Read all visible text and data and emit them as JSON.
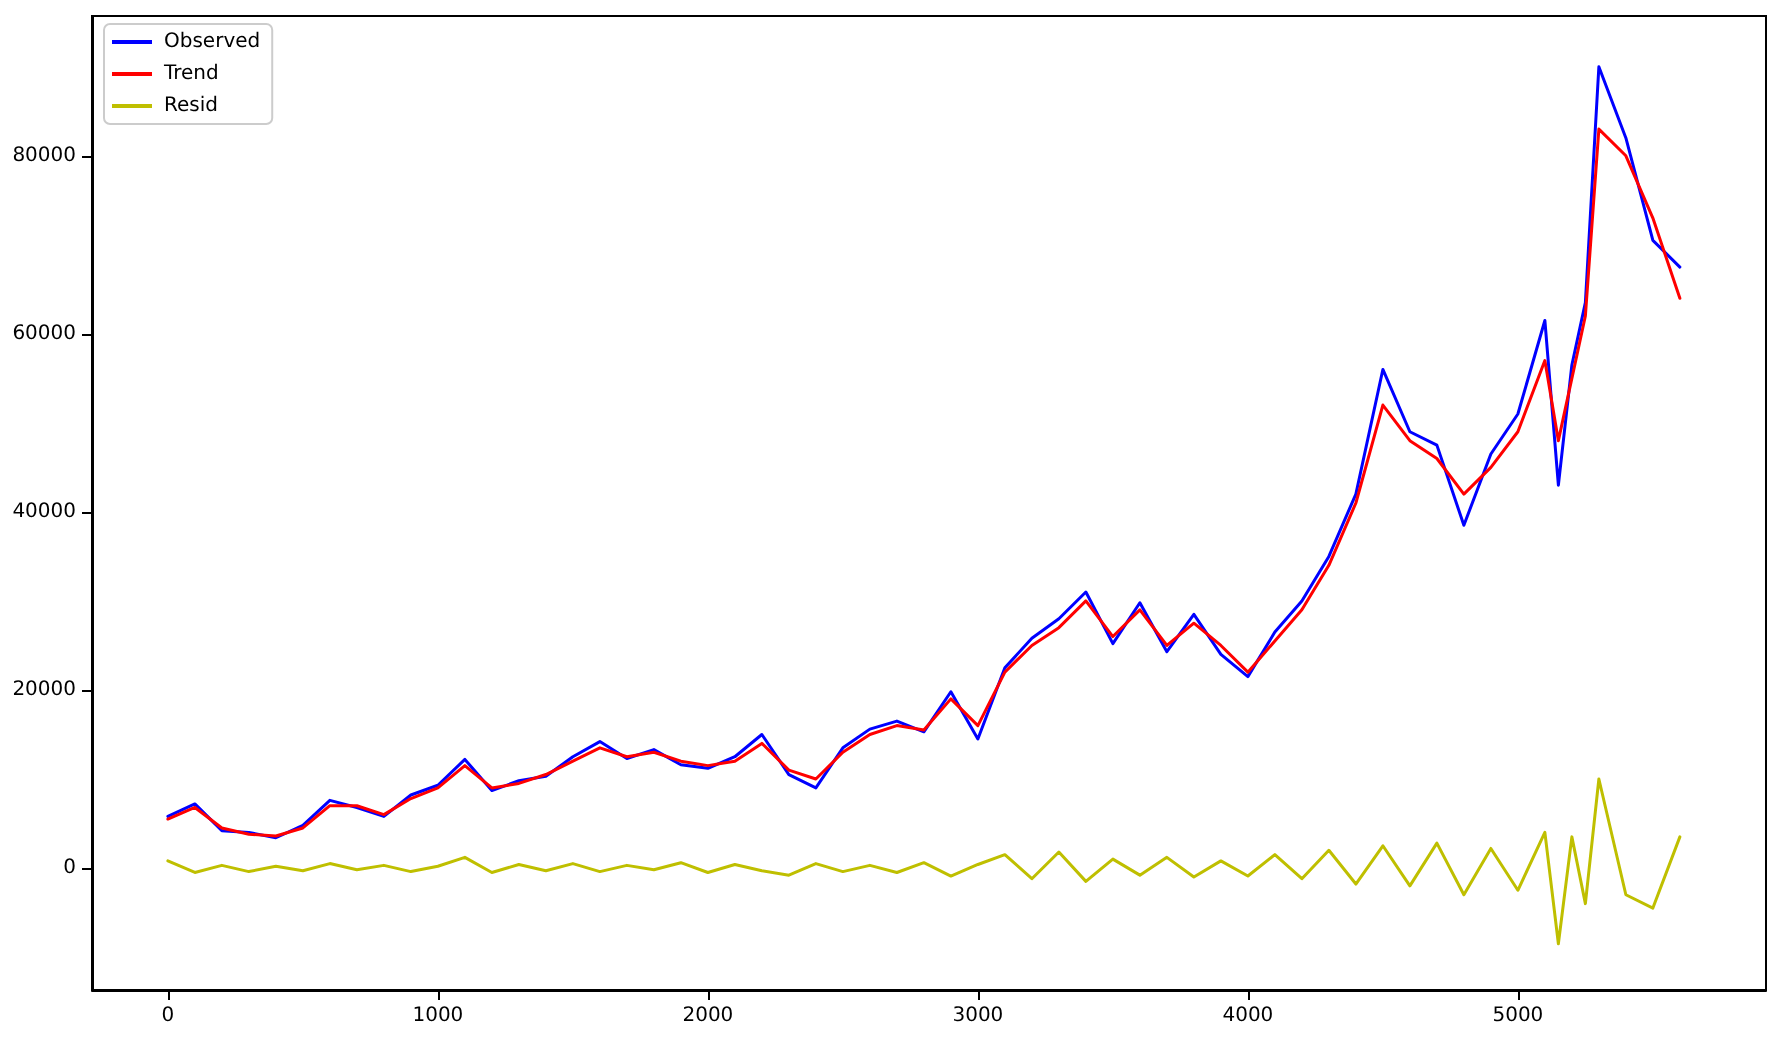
{
  "chart_data": {
    "type": "line",
    "x": [
      0,
      100,
      200,
      300,
      400,
      500,
      600,
      700,
      800,
      900,
      1000,
      1100,
      1200,
      1300,
      1400,
      1500,
      1600,
      1700,
      1800,
      1900,
      2000,
      2100,
      2200,
      2300,
      2400,
      2500,
      2600,
      2700,
      2800,
      2900,
      3000,
      3100,
      3200,
      3300,
      3400,
      3500,
      3600,
      3700,
      3800,
      3900,
      4000,
      4100,
      4200,
      4300,
      4400,
      4500,
      4600,
      4700,
      4800,
      4900,
      5000,
      5100,
      5150,
      5200,
      5250,
      5300,
      5400,
      5500,
      5600
    ],
    "series": [
      {
        "name": "Observed",
        "color": "#0000ff",
        "values": [
          5800,
          7200,
          4200,
          4000,
          3400,
          4800,
          7600,
          6800,
          5800,
          8200,
          9300,
          12200,
          8700,
          9800,
          10300,
          12500,
          14200,
          12300,
          13300,
          11600,
          11200,
          12500,
          15000,
          10500,
          9000,
          13500,
          15600,
          16500,
          15300,
          19800,
          14500,
          22500,
          25800,
          28000,
          31000,
          25200,
          29800,
          24300,
          28500,
          24000,
          21500,
          26500,
          30000,
          35000,
          42000,
          56000,
          49000,
          47500,
          38500,
          46500,
          51000,
          61500,
          43000,
          56500,
          63500,
          90000,
          82000,
          70500,
          67500
        ]
      },
      {
        "name": "Trend",
        "color": "#ff0000",
        "values": [
          5500,
          6800,
          4500,
          3800,
          3600,
          4500,
          7000,
          7000,
          6000,
          7800,
          9000,
          11500,
          9000,
          9500,
          10500,
          12000,
          13500,
          12500,
          13000,
          12000,
          11500,
          12000,
          14000,
          11000,
          10000,
          13000,
          15000,
          16000,
          15500,
          19000,
          16000,
          22000,
          25000,
          27000,
          30000,
          26000,
          29000,
          25000,
          27500,
          25000,
          22000,
          25500,
          29000,
          34000,
          41000,
          52000,
          48000,
          46000,
          42000,
          45000,
          49000,
          57000,
          48000,
          55000,
          62000,
          83000,
          80000,
          73000,
          64000
        ]
      },
      {
        "name": "Resid",
        "color": "#bfbf00",
        "values": [
          800,
          -500,
          300,
          -400,
          200,
          -300,
          500,
          -200,
          300,
          -400,
          200,
          1200,
          -500,
          400,
          -300,
          500,
          -400,
          300,
          -200,
          600,
          -500,
          400,
          -300,
          -800,
          500,
          -400,
          300,
          -500,
          600,
          -900,
          400,
          1500,
          -1200,
          1800,
          -1500,
          1000,
          -800,
          1200,
          -1000,
          800,
          -900,
          1500,
          -1200,
          2000,
          -1800,
          2500,
          -2000,
          2800,
          -3000,
          2200,
          -2500,
          4000,
          -8500,
          3500,
          -4000,
          10000,
          -3000,
          -4500,
          3500
        ]
      }
    ],
    "xlim": [
      -281,
      5919
    ],
    "xticks": [
      0,
      1000,
      2000,
      3000,
      4000,
      5000
    ],
    "ylim": [
      -13700,
      95700
    ],
    "yticks": [
      0,
      20000,
      40000,
      60000,
      80000
    ],
    "legend": "top left",
    "marker": "none",
    "line_style": "solid",
    "grid": false
  }
}
